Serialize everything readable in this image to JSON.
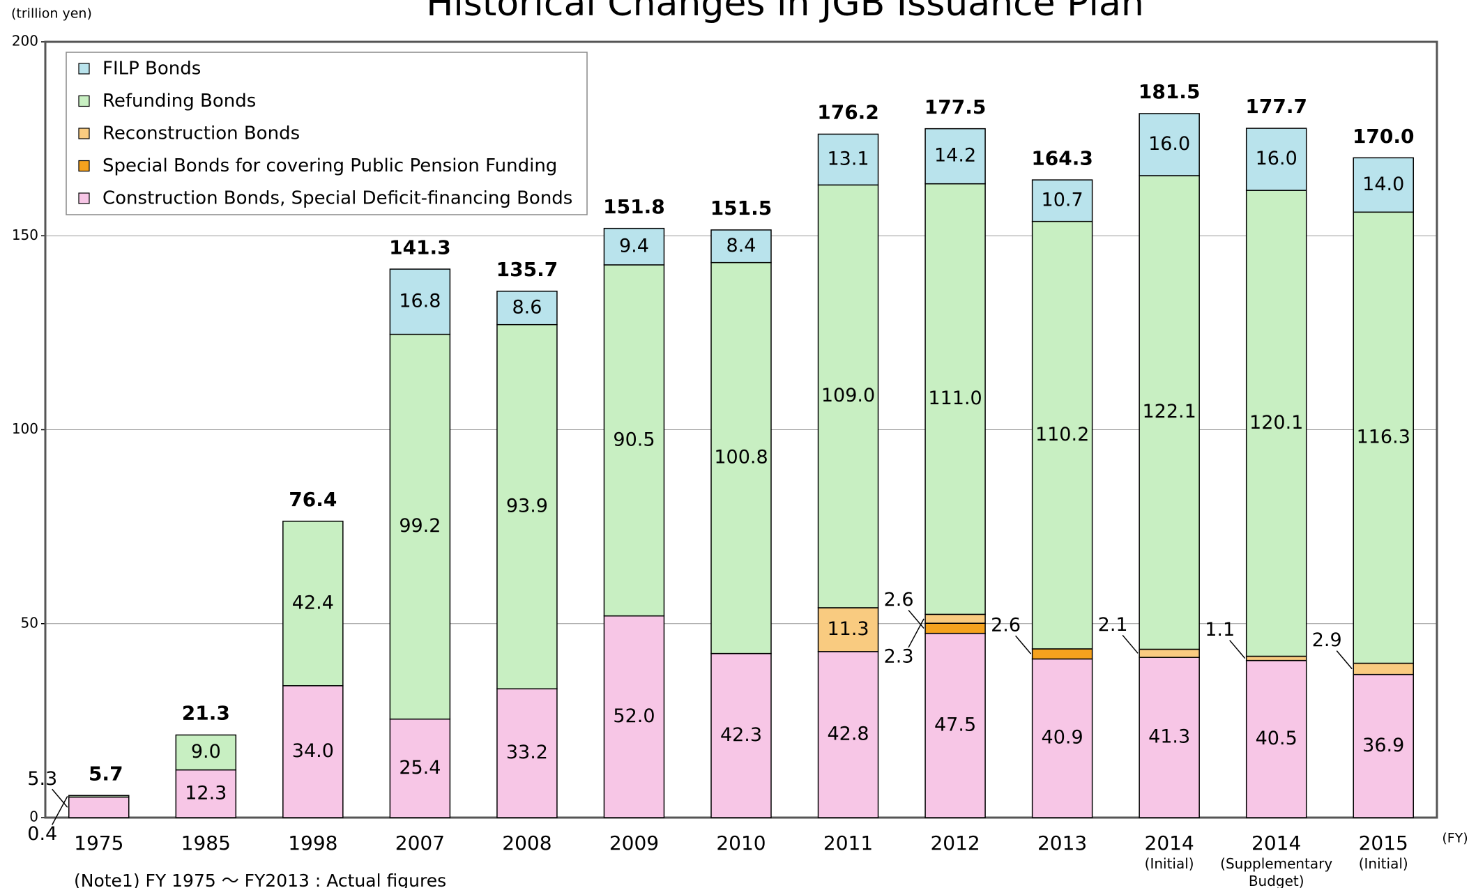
{
  "chart_data": {
    "type": "stacked_bar",
    "title": "Historical Changes in JGB Issuance Plan",
    "y_unit": "(trillion yen)",
    "x_unit": "(FY)",
    "note": "(Note1)  FY 1975 ～ FY2013 : Actual figures",
    "categories": [
      "1975",
      "1985",
      "1998",
      "2007",
      "2008",
      "2009",
      "2010",
      "2011",
      "2012",
      "2013",
      "2014",
      "2014",
      "2015"
    ],
    "category_sublabels": [
      null,
      null,
      null,
      null,
      null,
      null,
      null,
      null,
      null,
      null,
      "(Initial)",
      "(Supplementary Budget)",
      "(Initial)"
    ],
    "ylim": [
      0,
      200
    ],
    "yticks": [
      0,
      50,
      100,
      150,
      200
    ],
    "grid": true,
    "legend": "upper left",
    "series": [
      {
        "name": "Construction Bonds, Special Deficit-financing Bonds",
        "color": "#f7c6e6",
        "values": [
          5.3,
          12.3,
          34.0,
          25.4,
          33.2,
          52.0,
          42.3,
          42.8,
          47.5,
          40.9,
          41.3,
          40.5,
          36.9
        ],
        "value_labels": [
          "5.3",
          "12.3",
          "34.0",
          "25.4",
          "33.2",
          "52.0",
          "42.3",
          "42.8",
          "47.5",
          "40.9",
          "41.3",
          "40.5",
          "36.9"
        ]
      },
      {
        "name": "Special Bonds for covering Public Pension Funding",
        "color": "#f5a21e",
        "values": [
          null,
          null,
          null,
          null,
          null,
          null,
          null,
          null,
          2.6,
          2.6,
          null,
          null,
          null
        ],
        "value_labels": [
          null,
          null,
          null,
          null,
          null,
          null,
          null,
          null,
          "2.6",
          "2.6",
          null,
          null,
          null
        ]
      },
      {
        "name": "Reconstruction Bonds",
        "color": "#f9cb80",
        "values": [
          null,
          null,
          null,
          null,
          null,
          null,
          null,
          11.3,
          2.3,
          null,
          2.1,
          1.1,
          2.9
        ],
        "value_labels": [
          null,
          null,
          null,
          null,
          null,
          null,
          null,
          "11.3",
          "2.3",
          null,
          "2.1",
          "1.1",
          "2.9"
        ]
      },
      {
        "name": "Refunding Bonds",
        "color": "#c8efc2",
        "values": [
          0.4,
          9.0,
          42.4,
          99.2,
          93.9,
          90.5,
          100.8,
          109.0,
          111.0,
          110.2,
          122.1,
          120.1,
          116.3
        ],
        "value_labels": [
          "0.4",
          "9.0",
          "42.4",
          "99.2",
          "93.9",
          "90.5",
          "100.8",
          "109.0",
          "111.0",
          "110.2",
          "122.1",
          "120.1",
          "116.3"
        ]
      },
      {
        "name": "FILP Bonds",
        "color": "#b9e3ec",
        "values": [
          null,
          null,
          null,
          16.8,
          8.6,
          9.4,
          8.4,
          13.1,
          14.2,
          10.7,
          16.0,
          16.0,
          14.0
        ],
        "value_labels": [
          null,
          null,
          null,
          "16.8",
          "8.6",
          "9.4",
          "8.4",
          "13.1",
          "14.2",
          "10.7",
          "16.0",
          "16.0",
          "14.0"
        ]
      }
    ],
    "totals": [
      5.7,
      21.3,
      76.4,
      141.3,
      135.7,
      151.8,
      151.5,
      176.2,
      177.5,
      164.3,
      181.5,
      177.7,
      170.0
    ],
    "totals_labels": [
      "5.7",
      "21.3",
      "76.4",
      "141.3",
      "135.7",
      "151.8",
      "151.5",
      "176.2",
      "177.5",
      "164.3",
      "181.5",
      "177.7",
      "170.0"
    ]
  }
}
